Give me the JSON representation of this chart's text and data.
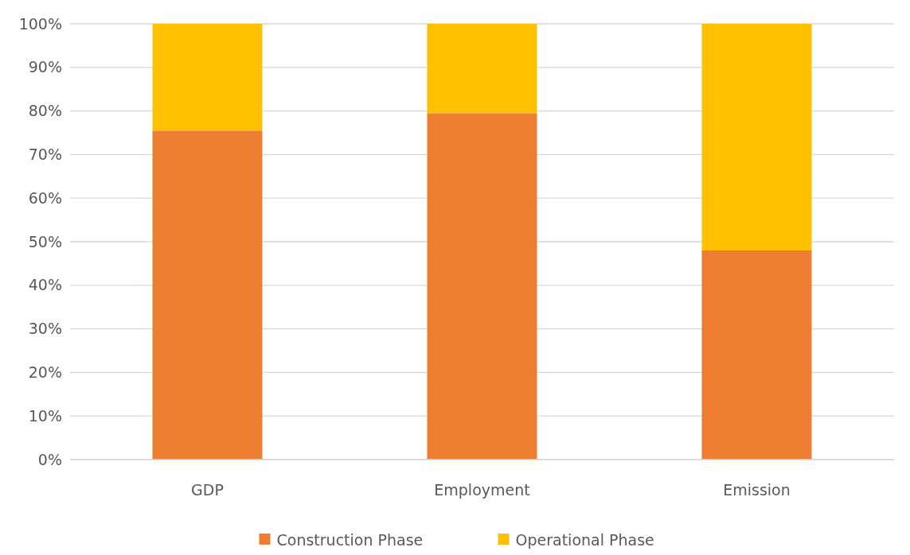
{
  "chart_data": {
    "type": "bar",
    "stacked": true,
    "categories": [
      "GDP",
      "Employment",
      "Emission"
    ],
    "series": [
      {
        "name": "Construction Phase",
        "color": "#ed7d31",
        "values": [
          75.5,
          79.5,
          48
        ]
      },
      {
        "name": "Operational Phase",
        "color": "#ffc000",
        "values": [
          24.5,
          20.5,
          52
        ]
      }
    ],
    "ylim": [
      0,
      100
    ],
    "yticks": [
      {
        "value": 0,
        "label": "0%"
      },
      {
        "value": 10,
        "label": "10%"
      },
      {
        "value": 20,
        "label": "20%"
      },
      {
        "value": 30,
        "label": "30%"
      },
      {
        "value": 40,
        "label": "40%"
      },
      {
        "value": 50,
        "label": "50%"
      },
      {
        "value": 60,
        "label": "60%"
      },
      {
        "value": 70,
        "label": "70%"
      },
      {
        "value": 80,
        "label": "80%"
      },
      {
        "value": 90,
        "label": "90%"
      },
      {
        "value": 100,
        "label": "100%"
      }
    ],
    "grid": "y",
    "legend": "bottom"
  }
}
